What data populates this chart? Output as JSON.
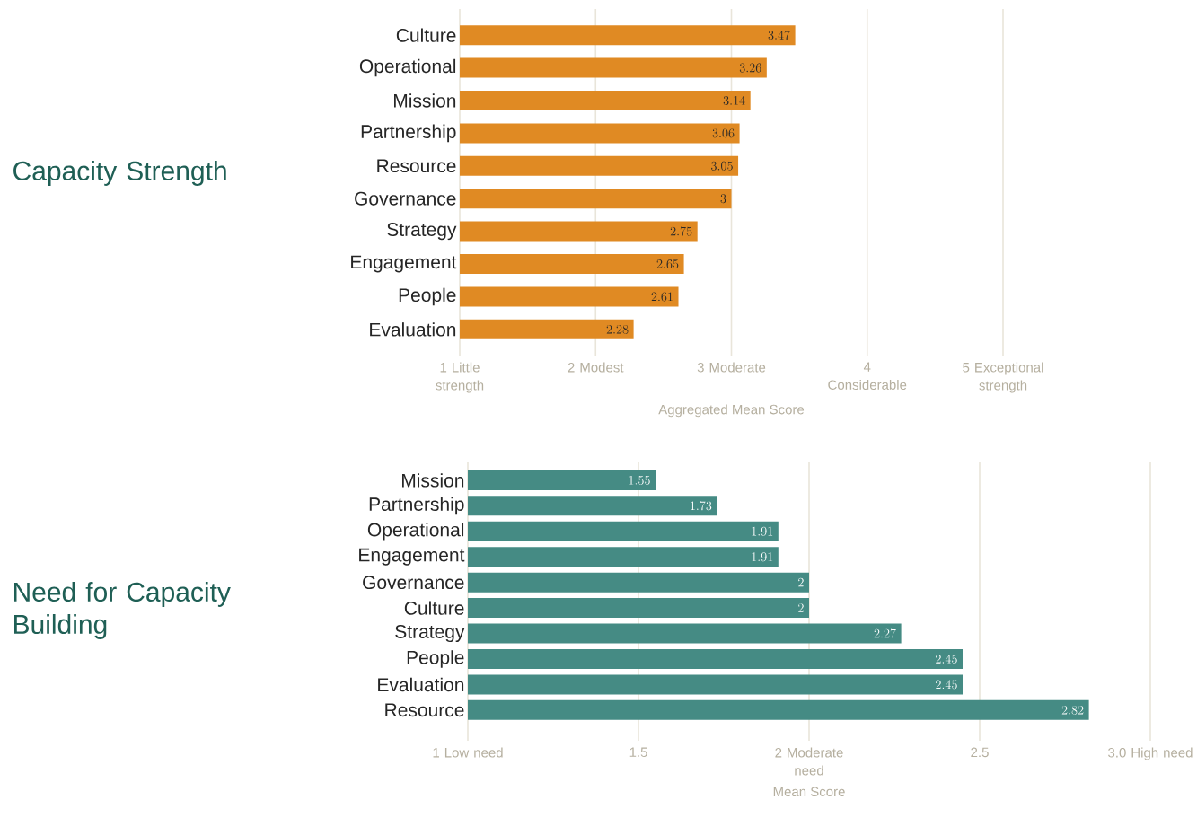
{
  "chart_data": [
    {
      "type": "bar",
      "orientation": "horizontal",
      "title": "Capacity Strength",
      "xlabel": "Aggregated Mean Score",
      "categories": [
        "Culture",
        "Operational",
        "Mission",
        "Partnership",
        "Resource",
        "Governance",
        "Strategy",
        "Engagement",
        "People",
        "Evaluation"
      ],
      "values": [
        3.47,
        3.26,
        3.14,
        3.06,
        3.05,
        3,
        2.75,
        2.65,
        2.61,
        2.28
      ],
      "color": "#e08a23",
      "xlim": [
        1,
        5
      ],
      "xticks": [
        {
          "value": 1,
          "label": "1 Little strength"
        },
        {
          "value": 2,
          "label": "2 Modest"
        },
        {
          "value": 3,
          "label": "3 Moderate"
        },
        {
          "value": 4,
          "label": "4 Considerable"
        },
        {
          "value": 5,
          "label": "5 Exceptional strength"
        }
      ],
      "grid": "x",
      "data_labels": true
    },
    {
      "type": "bar",
      "orientation": "horizontal",
      "title": "Need for Capacity Building",
      "xlabel": "Mean Score",
      "categories": [
        "Mission",
        "Partnership",
        "Operational",
        "Engagement",
        "Governance",
        "Culture",
        "Strategy",
        "People",
        "Evaluation",
        "Resource"
      ],
      "values": [
        1.55,
        1.73,
        1.91,
        1.91,
        2,
        2,
        2.27,
        2.45,
        2.45,
        2.82
      ],
      "color": "#458b84",
      "xlim": [
        1,
        3
      ],
      "xticks": [
        {
          "value": 1,
          "label": "1 Low need"
        },
        1.5,
        {
          "value": 2,
          "label": "2 Moderate need"
        },
        2.5,
        {
          "value": 3,
          "label": "3.0 High need"
        }
      ],
      "grid": "x",
      "data_labels": true
    }
  ]
}
